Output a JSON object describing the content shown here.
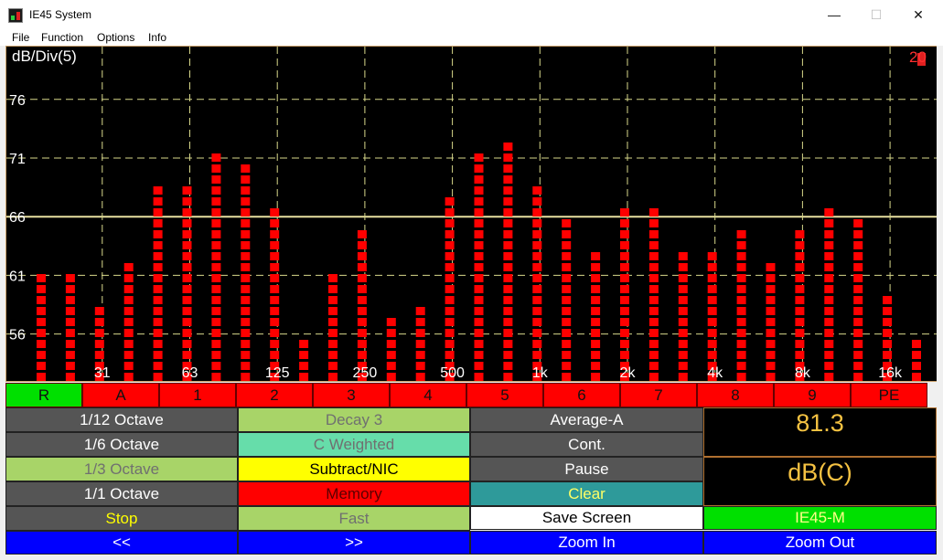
{
  "window": {
    "title": "IE45 System"
  },
  "menu": [
    "File",
    "Function",
    "Options",
    "Info"
  ],
  "chart_data": {
    "type": "bar",
    "scale_label": "dB/Div(5)",
    "corner_label": "20",
    "ylim": [
      52,
      80.5
    ],
    "y_ticks": [
      56,
      61,
      66,
      71,
      76
    ],
    "reference_line": 66,
    "x_tick_labels": [
      "31",
      "63",
      "125",
      "250",
      "500",
      "1k",
      "2k",
      "4k",
      "8k",
      "16k"
    ],
    "values": [
      61.8,
      61.8,
      58.8,
      62.8,
      68.8,
      68.8,
      71.8,
      70.8,
      66.8,
      55.8,
      61.8,
      64.8,
      57.8,
      58.8,
      67.8,
      71.8,
      72.8,
      68.8,
      65.8,
      63.8,
      66.8,
      66.8,
      63.8,
      63.8,
      64.8,
      62.8,
      64.8,
      66.8,
      65.8,
      59.8,
      55.8
    ]
  },
  "tabs": [
    "R",
    "A",
    "1",
    "2",
    "3",
    "4",
    "5",
    "6",
    "7",
    "8",
    "9",
    "PE"
  ],
  "controls": {
    "oct_12": "1/12 Octave",
    "decay": "Decay 3",
    "average": "Average-A",
    "oct_6": "1/6 Octave",
    "weighting": "C Weighted",
    "cont": "Cont.",
    "oct_3": "1/3 Octave",
    "subtract": "Subtract/NIC",
    "pause": "Pause",
    "oct_1": "1/1 Octave",
    "memory": "Memory",
    "clear": "Clear",
    "stop": "Stop",
    "fast": "Fast",
    "save": "Save Screen",
    "model": "IE45-M",
    "prev": "<<",
    "next": ">>",
    "zoom_in": "Zoom In",
    "zoom_out": "Zoom Out"
  },
  "readout": {
    "value": "81.3",
    "unit": "dB(C)"
  },
  "colors": {
    "bar": "#ff0000",
    "grid": "#d8d88a",
    "tab_active": "#00e000",
    "tab": "#ff0000",
    "accent_blue": "#0000ff"
  }
}
